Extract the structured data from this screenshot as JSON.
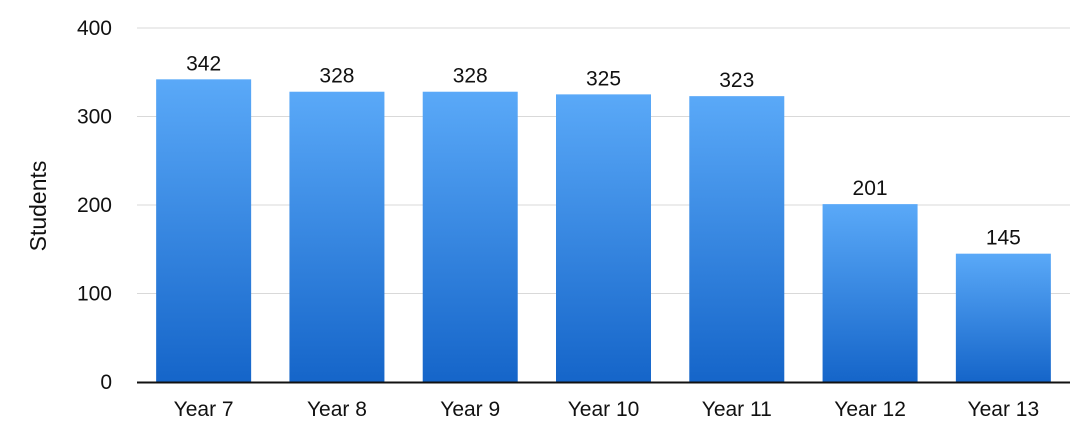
{
  "chart_data": {
    "type": "bar",
    "title": "",
    "xlabel": "",
    "ylabel": "Students",
    "categories": [
      "Year 7",
      "Year 8",
      "Year 9",
      "Year 10",
      "Year 11",
      "Year 12",
      "Year 13"
    ],
    "values": [
      342,
      328,
      328,
      325,
      323,
      201,
      145
    ],
    "data_labels": [
      "342",
      "328",
      "328",
      "325",
      "323",
      "201",
      "145"
    ],
    "ylim": [
      0,
      400
    ],
    "yticks": [
      0,
      100,
      200,
      300,
      400
    ],
    "ytick_labels": [
      "0",
      "100",
      "200",
      "300",
      "400"
    ],
    "grid": true,
    "legend": "none",
    "colors": {
      "bar_top": "#5aa9f8",
      "bar_bottom": "#1565c9",
      "grid": "#d9d9d9",
      "axis": "#111111"
    }
  }
}
